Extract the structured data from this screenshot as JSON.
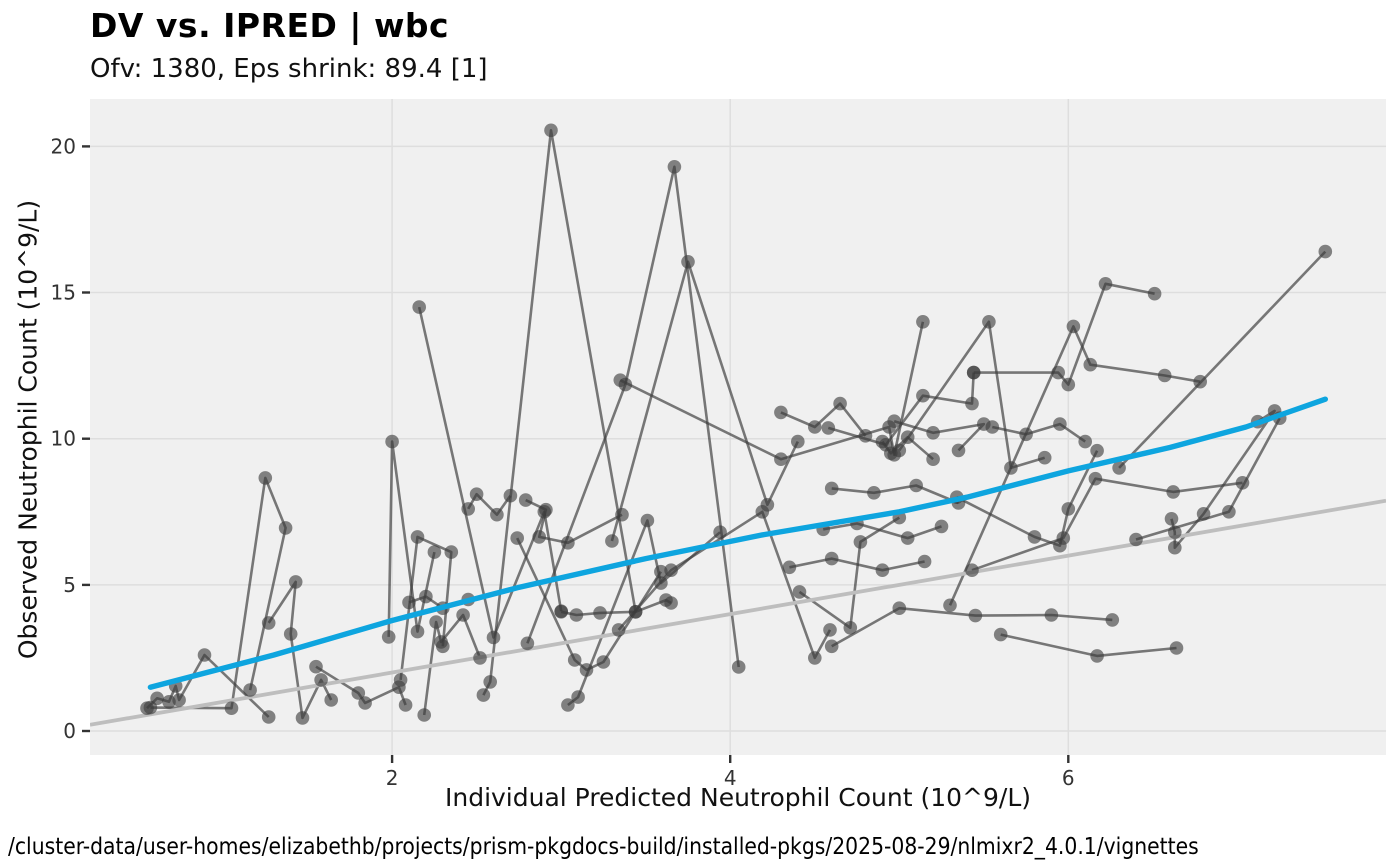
{
  "header": {
    "title": "DV vs. IPRED | wbc",
    "subtitle": "Ofv: 1380, Eps shrink: 89.4 [1]"
  },
  "caption": {
    "text": "/cluster-data/user-homes/elizabethb/projects/prism-pkgdocs-build/installed-pkgs/2025-08-29/nlmixr2_4.0.1/vignettes"
  },
  "chart_data": {
    "type": "scatter",
    "subtype": "spaghetti-lines-with-smooth",
    "title": "DV vs. IPRED | wbc",
    "subtitle": "Ofv: 1380, Eps shrink: 89.4 [1]",
    "xlabel": "Individual Predicted Neutrophil Count (10^9/L)",
    "ylabel": "Observed Neutrophil Count (10^9/L)",
    "x_ticks": [
      2,
      4,
      6
    ],
    "y_ticks": [
      0,
      5,
      10,
      15,
      20
    ],
    "xlim": [
      0.213,
      7.879
    ],
    "ylim": [
      -0.82,
      21.62
    ],
    "grid": "major-only",
    "legend_position": "none",
    "colors": {
      "panel_bg": "#F0F0F0",
      "grid": "#DEDEDE",
      "axis_text": "#333333",
      "tick_mark": "#333333",
      "point": "#3C3C3C",
      "subject_line": "#3C3C3C",
      "identity_line": "#BEBEBE",
      "smooth_line": "#0EA5DF"
    },
    "identity_line": {
      "slope": 1,
      "intercept": 0
    },
    "smooth": {
      "points": [
        [
          0.57,
          1.5
        ],
        [
          1.3,
          2.6
        ],
        [
          2.0,
          3.78
        ],
        [
          2.74,
          4.9
        ],
        [
          3.5,
          5.9
        ],
        [
          4.2,
          6.72
        ],
        [
          5.0,
          7.5
        ],
        [
          5.4,
          8.0
        ],
        [
          6.0,
          8.9
        ],
        [
          6.6,
          9.7
        ],
        [
          7.05,
          10.4
        ],
        [
          7.52,
          11.35
        ]
      ]
    },
    "subjects": [
      {
        "id": 1,
        "points": [
          [
            0.55,
            0.78
          ],
          [
            0.61,
            1.12
          ],
          [
            0.68,
            1.0
          ],
          [
            0.72,
            1.54
          ],
          [
            0.74,
            1.06
          ],
          [
            0.89,
            2.6
          ],
          [
            1.27,
            0.48
          ]
        ]
      },
      {
        "id": 2,
        "points": [
          [
            0.57,
            0.8
          ],
          [
            1.05,
            0.78
          ],
          [
            1.25,
            8.66
          ],
          [
            1.37,
            6.95
          ],
          [
            1.16,
            1.4
          ]
        ]
      },
      {
        "id": 3,
        "points": [
          [
            1.27,
            3.7
          ],
          [
            1.43,
            5.1
          ],
          [
            1.4,
            3.32
          ],
          [
            1.47,
            0.45
          ],
          [
            1.58,
            1.75
          ],
          [
            1.64,
            1.06
          ]
        ]
      },
      {
        "id": 4,
        "points": [
          [
            1.55,
            2.2
          ],
          [
            1.8,
            1.3
          ],
          [
            1.84,
            0.96
          ],
          [
            2.04,
            1.5
          ],
          [
            2.08,
            0.89
          ]
        ]
      },
      {
        "id": 5,
        "points": [
          [
            1.98,
            3.22
          ],
          [
            2.0,
            9.9
          ],
          [
            2.15,
            3.4
          ],
          [
            2.25,
            6.12
          ]
        ]
      },
      {
        "id": 6,
        "points": [
          [
            2.16,
            14.5
          ],
          [
            2.6,
            3.2
          ],
          [
            2.9,
            7.5
          ],
          [
            3.0,
            4.1
          ]
        ]
      },
      {
        "id": 7,
        "points": [
          [
            2.19,
            0.55
          ],
          [
            2.26,
            3.73
          ],
          [
            2.29,
            3.05
          ],
          [
            2.42,
            3.97
          ],
          [
            2.52,
            2.5
          ]
        ]
      },
      {
        "id": 8,
        "points": [
          [
            2.54,
            1.23
          ],
          [
            2.58,
            1.68
          ],
          [
            2.94,
            20.55
          ],
          [
            3.44,
            4.08
          ]
        ]
      },
      {
        "id": 9,
        "points": [
          [
            2.79,
            7.9
          ],
          [
            2.91,
            7.57
          ],
          [
            2.87,
            6.64
          ],
          [
            3.04,
            6.44
          ],
          [
            3.36,
            7.4
          ]
        ]
      },
      {
        "id": 10,
        "points": [
          [
            2.74,
            6.6
          ],
          [
            3.08,
            2.43
          ],
          [
            3.15,
            2.09
          ],
          [
            3.25,
            2.36
          ],
          [
            3.59,
            5.45
          ]
        ]
      },
      {
        "id": 11,
        "points": [
          [
            3.04,
            0.89
          ],
          [
            3.1,
            1.16
          ],
          [
            3.51,
            7.2
          ],
          [
            3.59,
            5.06
          ],
          [
            3.94,
            6.8
          ]
        ]
      },
      {
        "id": 12,
        "points": [
          [
            2.8,
            3.0
          ],
          [
            3.38,
            11.85
          ],
          [
            3.67,
            19.3
          ],
          [
            4.05,
            2.19
          ]
        ]
      },
      {
        "id": 13,
        "points": [
          [
            3.3,
            6.5
          ],
          [
            3.75,
            16.05
          ],
          [
            4.22,
            7.74
          ],
          [
            4.4,
            9.9
          ]
        ]
      },
      {
        "id": 14,
        "points": [
          [
            3.0,
            4.08
          ],
          [
            3.09,
            3.97
          ],
          [
            3.23,
            4.04
          ],
          [
            3.44,
            4.08
          ],
          [
            3.62,
            4.48
          ],
          [
            3.65,
            4.38
          ]
        ]
      },
      {
        "id": 15,
        "points": [
          [
            3.34,
            3.46
          ],
          [
            3.65,
            5.5
          ],
          [
            4.19,
            7.5
          ],
          [
            4.5,
            2.5
          ],
          [
            4.59,
            3.46
          ]
        ]
      },
      {
        "id": 16,
        "points": [
          [
            3.35,
            12.0
          ],
          [
            4.3,
            9.3
          ],
          [
            4.94,
            10.4
          ],
          [
            4.97,
            9.45
          ],
          [
            5.14,
            14.0
          ]
        ]
      },
      {
        "id": 17,
        "points": [
          [
            4.41,
            4.76
          ],
          [
            4.71,
            3.53
          ],
          [
            4.77,
            6.47
          ],
          [
            5.0,
            7.3
          ]
        ]
      },
      {
        "id": 18,
        "points": [
          [
            4.58,
            10.37
          ],
          [
            4.92,
            9.79
          ],
          [
            5.14,
            11.47
          ],
          [
            5.43,
            11.2
          ],
          [
            5.44,
            12.26
          ]
        ]
      },
      {
        "id": 19,
        "points": [
          [
            4.6,
            2.9
          ],
          [
            5.0,
            4.2
          ],
          [
            5.45,
            3.95
          ],
          [
            5.9,
            3.97
          ],
          [
            6.26,
            3.8
          ]
        ]
      },
      {
        "id": 20,
        "points": [
          [
            5.0,
            9.6
          ],
          [
            5.53,
            14.0
          ],
          [
            5.66,
            9.0
          ],
          [
            5.86,
            9.35
          ]
        ]
      },
      {
        "id": 21,
        "points": [
          [
            5.34,
            8.0
          ],
          [
            5.8,
            6.64
          ],
          [
            5.95,
            6.34
          ],
          [
            6.0,
            7.6
          ],
          [
            6.17,
            9.59
          ]
        ]
      },
      {
        "id": 22,
        "points": [
          [
            5.43,
            5.5
          ],
          [
            5.97,
            6.6
          ],
          [
            6.16,
            8.63
          ],
          [
            6.62,
            8.18
          ],
          [
            7.03,
            8.49
          ]
        ]
      },
      {
        "id": 23,
        "points": [
          [
            5.44,
            12.26
          ],
          [
            5.94,
            12.26
          ],
          [
            6.0,
            11.85
          ],
          [
            6.22,
            15.3
          ],
          [
            6.51,
            14.96
          ]
        ]
      },
      {
        "id": 24,
        "points": [
          [
            5.3,
            4.3
          ],
          [
            6.03,
            13.84
          ],
          [
            6.13,
            12.53
          ],
          [
            6.57,
            12.16
          ],
          [
            6.78,
            11.95
          ]
        ]
      },
      {
        "id": 25,
        "points": [
          [
            5.6,
            3.3
          ],
          [
            6.17,
            2.57
          ],
          [
            6.64,
            2.84
          ]
        ]
      },
      {
        "id": 26,
        "points": [
          [
            6.61,
            7.26
          ],
          [
            6.63,
            6.8
          ],
          [
            6.63,
            6.27
          ],
          [
            6.8,
            7.43
          ],
          [
            7.22,
            10.95
          ],
          [
            7.12,
            10.58
          ]
        ]
      },
      {
        "id": 27,
        "points": [
          [
            6.3,
            9.0
          ],
          [
            7.52,
            16.4
          ]
        ]
      },
      {
        "id": 28,
        "points": [
          [
            4.97,
            10.6
          ],
          [
            5.2,
            10.2
          ],
          [
            5.5,
            10.5
          ],
          [
            5.35,
            9.6
          ]
        ]
      },
      {
        "id": 29,
        "points": [
          [
            4.6,
            8.3
          ],
          [
            4.85,
            8.15
          ],
          [
            5.1,
            8.4
          ],
          [
            5.35,
            7.8
          ]
        ]
      },
      {
        "id": 30,
        "points": [
          [
            2.45,
            7.6
          ],
          [
            2.5,
            8.1
          ],
          [
            2.62,
            7.4
          ],
          [
            2.7,
            8.05
          ]
        ]
      },
      {
        "id": 31,
        "points": [
          [
            2.1,
            4.4
          ],
          [
            2.2,
            4.6
          ],
          [
            2.3,
            4.2
          ],
          [
            2.45,
            4.5
          ]
        ]
      },
      {
        "id": 32,
        "points": [
          [
            4.3,
            10.9
          ],
          [
            4.5,
            10.4
          ],
          [
            4.65,
            11.2
          ],
          [
            4.8,
            10.1
          ]
        ]
      },
      {
        "id": 33,
        "points": [
          [
            4.9,
            9.9
          ],
          [
            4.95,
            9.5
          ],
          [
            5.05,
            10.05
          ],
          [
            5.2,
            9.3
          ]
        ]
      },
      {
        "id": 34,
        "points": [
          [
            4.55,
            6.9
          ],
          [
            4.75,
            7.1
          ],
          [
            5.05,
            6.6
          ],
          [
            5.25,
            7.0
          ]
        ]
      },
      {
        "id": 35,
        "points": [
          [
            5.55,
            10.4
          ],
          [
            5.75,
            10.15
          ],
          [
            5.95,
            10.5
          ],
          [
            6.1,
            9.9
          ]
        ]
      },
      {
        "id": 36,
        "points": [
          [
            4.35,
            5.6
          ],
          [
            4.6,
            5.9
          ],
          [
            4.9,
            5.5
          ],
          [
            5.15,
            5.8
          ]
        ]
      },
      {
        "id": 37,
        "points": [
          [
            6.4,
            6.55
          ],
          [
            6.95,
            7.5
          ],
          [
            7.25,
            10.7
          ]
        ]
      },
      {
        "id": 38,
        "points": [
          [
            2.05,
            1.75
          ],
          [
            2.15,
            6.64
          ],
          [
            2.35,
            6.12
          ],
          [
            2.3,
            2.9
          ]
        ]
      }
    ]
  }
}
